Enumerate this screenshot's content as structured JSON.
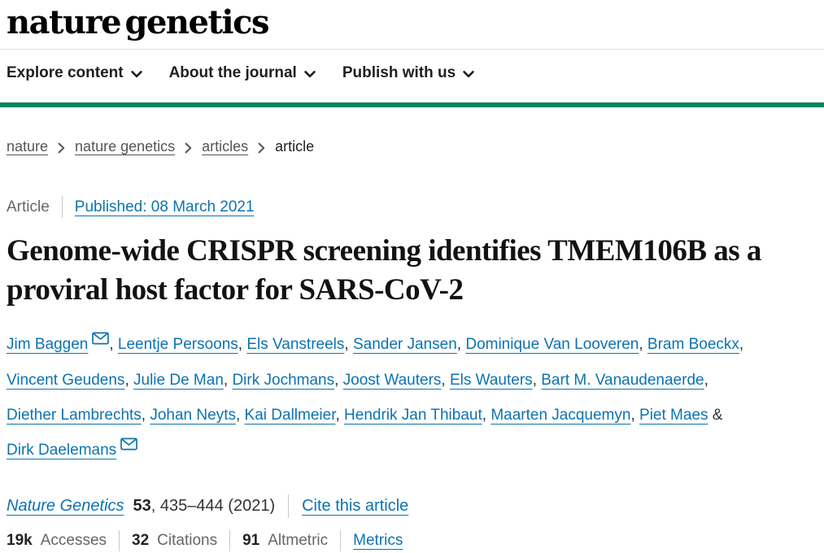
{
  "colors": {
    "link_blue": "#0c73af",
    "brand_green": "#00855f"
  },
  "header": {
    "logo": "nature genetics"
  },
  "nav": {
    "items": [
      {
        "label": "Explore content"
      },
      {
        "label": "About the journal"
      },
      {
        "label": "Publish with us"
      }
    ]
  },
  "breadcrumb": {
    "items": [
      {
        "label": "nature",
        "link": true
      },
      {
        "label": "nature genetics",
        "link": true
      },
      {
        "label": "articles",
        "link": true
      },
      {
        "label": "article",
        "link": false
      }
    ]
  },
  "article_meta": {
    "type": "Article",
    "published": "Published: 08 March 2021"
  },
  "title": "Genome-wide CRISPR screening identifies TMEM106B as a proviral host factor for SARS-CoV-2",
  "authors": {
    "list": [
      {
        "name": "Jim Baggen",
        "envelope": true
      },
      {
        "name": "Leentje Persoons"
      },
      {
        "name": "Els Vanstreels"
      },
      {
        "name": "Sander Jansen"
      },
      {
        "name": "Dominique Van Looveren"
      },
      {
        "name": "Bram Boeckx"
      },
      {
        "name": "Vincent Geudens"
      },
      {
        "name": "Julie De Man"
      },
      {
        "name": "Dirk Jochmans"
      },
      {
        "name": "Joost Wauters"
      },
      {
        "name": "Els Wauters"
      },
      {
        "name": "Bart M. Vanaudenaerde"
      },
      {
        "name": "Diether Lambrechts"
      },
      {
        "name": "Johan Neyts"
      },
      {
        "name": "Kai Dallmeier"
      },
      {
        "name": "Hendrik Jan Thibaut"
      },
      {
        "name": "Maarten Jacquemyn"
      },
      {
        "name": "Piet Maes"
      },
      {
        "name": "Dirk Daelemans",
        "envelope": true
      }
    ],
    "comma_separator": ",",
    "last_separator": "&"
  },
  "citation": {
    "journal": "Nature Genetics",
    "volume": "53",
    "pages": ", 435–444 (2021)",
    "cite_link": "Cite this article"
  },
  "metrics": {
    "items": [
      {
        "value": "19k",
        "label": "Accesses"
      },
      {
        "value": "32",
        "label": "Citations"
      },
      {
        "value": "91",
        "label": "Altmetric"
      }
    ],
    "link": "Metrics"
  }
}
